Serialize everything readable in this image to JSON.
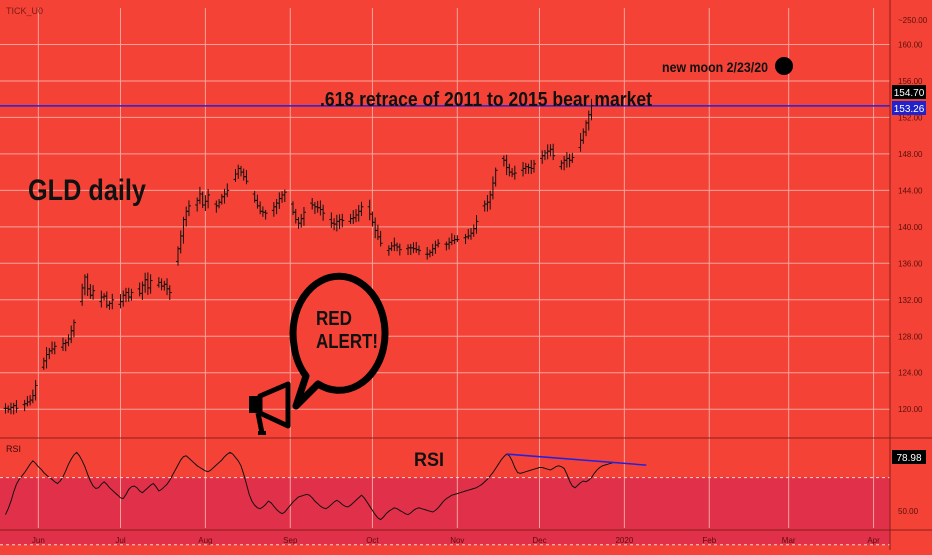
{
  "symbol": "TICK_U0",
  "colors": {
    "background": "#f44336",
    "grid": "#f7a39b",
    "candle": "#111111",
    "retrace_line": "#2222dd",
    "price_badge": "#000000",
    "retrace_badge": "#2222cc",
    "rsi_band": "#e0304a"
  },
  "annotations": {
    "chart_title": "GLD daily",
    "retrace_label": ".618 retrace of 2011 to 2015 bear market",
    "moon_label": "new moon 2/23/20",
    "alert_text_line1": "RED",
    "alert_text_line2": "ALERT!",
    "rsi_center_label": "RSI"
  },
  "price_badges": {
    "last": "154.70",
    "retrace": "153.26"
  },
  "rsi_badge": "78.98",
  "chart_data": [
    {
      "type": "bar",
      "subtype": "ohlc",
      "title": "GLD daily",
      "ylim": [
        117.5,
        164
      ],
      "y_ticks": [
        "~250.00",
        "160.00",
        "156.00",
        "152.00",
        "148.00",
        "144.00",
        "140.00",
        "136.00",
        "132.00",
        "128.00",
        "124.00",
        "120.00"
      ],
      "x_ticks": [
        "Jun",
        "Jul",
        "Aug",
        "Sep",
        "Oct",
        "Nov",
        "Dec",
        "2020",
        "Feb",
        "Mar",
        "Apr"
      ],
      "x_range": [
        "2019-05-18",
        "2020-04-07"
      ],
      "retrace_level": 153.26,
      "last_price": 154.7,
      "close_series": {
        "start": "2019-05-20",
        "step_days": 1,
        "values": [
          120.1,
          120.0,
          120.2,
          120.4,
          120.1,
          120.3,
          120.5,
          120.6,
          120.8,
          121.0,
          121.5,
          122.6,
          123.8,
          124.6,
          125.3,
          126.0,
          126.4,
          126.6,
          126.9,
          126.5,
          126.8,
          127.2,
          127.3,
          127.7,
          128.6,
          129.5,
          130.8,
          131.8,
          133.3,
          134.5,
          133.2,
          132.5,
          133.0,
          132.4,
          131.8,
          132.3,
          132.4,
          131.4,
          131.6,
          132.0,
          131.8,
          131.5,
          131.8,
          132.5,
          132.8,
          132.3,
          132.8,
          133.5,
          133.2,
          132.7,
          133.6,
          134.2,
          133.3,
          134.1,
          133.5,
          133.6,
          133.9,
          133.5,
          133.7,
          133.2,
          132.8,
          134.5,
          136.2,
          137.6,
          139.0,
          140.8,
          141.7,
          142.3,
          142.6,
          142.4,
          142.9,
          143.6,
          142.4,
          142.8,
          143.5,
          143.7,
          142.5,
          142.3,
          142.7,
          143.3,
          143.6,
          144.0,
          144.4,
          145.2,
          145.8,
          146.4,
          146.0,
          145.5,
          145.0,
          144.5,
          143.6,
          142.9,
          142.3,
          141.7,
          141.6,
          141.5,
          141.5,
          141.8,
          142.2,
          142.6,
          143.1,
          143.5,
          143.8,
          143.5,
          142.5,
          141.6,
          140.8,
          140.4,
          140.9,
          141.6,
          142.2,
          142.6,
          142.4,
          142.2,
          142.1,
          141.9,
          141.5,
          141.0,
          140.8,
          140.4,
          140.3,
          140.6,
          140.8,
          140.7,
          140.5,
          140.6,
          140.9,
          141.0,
          141.3,
          141.7,
          142.2,
          142.4,
          142.2,
          141.4,
          140.5,
          139.6,
          138.9,
          138.2,
          137.7,
          137.4,
          137.6,
          137.9,
          138.0,
          137.8,
          137.5,
          137.5,
          137.6,
          137.7,
          137.7,
          137.6,
          137.5,
          137.4,
          137.1,
          137.0,
          137.0,
          137.2,
          137.6,
          138.0,
          138.2,
          138.4,
          138.1,
          138.1,
          138.3,
          138.5,
          138.6,
          138.6,
          138.7,
          138.8,
          138.9,
          139.0,
          139.3,
          139.8,
          140.6,
          141.5,
          142.3,
          142.5,
          142.7,
          143.5,
          144.8,
          146.2,
          147.0,
          147.5,
          147.3,
          146.5,
          146.0,
          145.8,
          145.9,
          146.0,
          146.2,
          146.4,
          146.6,
          146.5,
          146.4,
          146.9,
          147.2,
          147.5,
          147.8,
          148.1,
          148.3,
          148.5,
          147.8,
          147.1,
          146.6,
          147.0,
          147.3,
          147.5,
          147.3,
          147.6,
          148.0,
          148.7,
          149.5,
          150.4,
          151.4,
          152.3,
          153.3,
          154.3,
          154.7
        ]
      }
    },
    {
      "type": "line",
      "title": "RSI",
      "ylim": [
        40,
        90
      ],
      "y_ticks": [
        "50.00"
      ],
      "last_value": 78.98,
      "band": [
        30,
        70
      ],
      "close_series_start": "2019-05-20",
      "values": [
        48.0,
        51.5,
        56.0,
        61.5,
        66.0,
        69.0,
        71.0,
        73.0,
        75.5,
        78.0,
        80.0,
        78.5,
        76.5,
        75.0,
        73.0,
        71.5,
        70.0,
        69.0,
        67.5,
        66.5,
        68.0,
        70.5,
        74.0,
        78.0,
        81.0,
        83.5,
        85.0,
        83.0,
        80.0,
        76.5,
        72.0,
        68.0,
        65.0,
        63.5,
        64.0,
        66.0,
        67.5,
        66.0,
        64.0,
        62.5,
        61.0,
        59.5,
        58.0,
        57.5,
        60.0,
        63.0,
        64.5,
        65.0,
        64.0,
        62.0,
        61.0,
        62.5,
        64.0,
        65.5,
        66.5,
        64.5,
        62.0,
        63.0,
        64.5,
        66.0,
        68.5,
        71.5,
        74.5,
        77.5,
        80.5,
        82.5,
        83.0,
        81.5,
        80.0,
        78.5,
        77.0,
        76.0,
        75.0,
        74.0,
        73.5,
        74.5,
        76.0,
        77.5,
        79.0,
        80.5,
        82.5,
        84.0,
        85.0,
        84.0,
        82.0,
        80.0,
        77.0,
        72.0,
        66.0,
        60.0,
        56.0,
        53.5,
        52.0,
        51.5,
        52.5,
        54.0,
        56.0,
        55.0,
        53.0,
        51.0,
        49.5,
        48.5,
        49.5,
        51.5,
        53.5,
        55.5,
        57.0,
        58.5,
        59.0,
        59.5,
        60.0,
        59.5,
        58.0,
        56.0,
        54.5,
        53.0,
        52.0,
        51.5,
        52.5,
        54.0,
        55.5,
        56.5,
        55.5,
        54.0,
        53.0,
        52.5,
        53.5,
        55.0,
        56.5,
        58.0,
        59.5,
        58.0,
        55.5,
        53.0,
        50.5,
        48.0,
        46.0,
        45.0,
        46.5,
        48.5,
        50.0,
        51.0,
        52.0,
        51.5,
        50.5,
        49.5,
        48.5,
        48.0,
        49.0,
        50.5,
        51.5,
        52.0,
        51.5,
        51.0,
        50.5,
        50.0,
        49.5,
        50.5,
        52.0,
        54.0,
        56.0,
        57.5,
        58.5,
        59.5,
        60.0,
        60.5,
        61.0,
        61.5,
        62.0,
        62.5,
        63.0,
        63.5,
        64.0,
        65.0,
        66.0,
        67.5,
        69.0,
        71.0,
        73.0,
        75.5,
        78.0,
        80.5,
        82.5,
        84.0,
        83.0,
        80.0,
        76.0,
        73.0,
        72.5,
        73.0,
        73.5,
        74.0,
        74.5,
        75.0,
        75.5,
        76.0,
        76.0,
        75.5,
        75.0,
        74.5,
        75.5,
        76.5,
        77.0,
        76.5,
        75.5,
        72.0,
        68.0,
        65.0,
        64.0,
        65.5,
        67.0,
        68.0,
        67.5,
        68.5,
        70.0,
        72.5,
        74.5,
        76.0,
        77.0,
        77.5,
        78.0,
        78.5,
        78.98
      ]
    }
  ]
}
